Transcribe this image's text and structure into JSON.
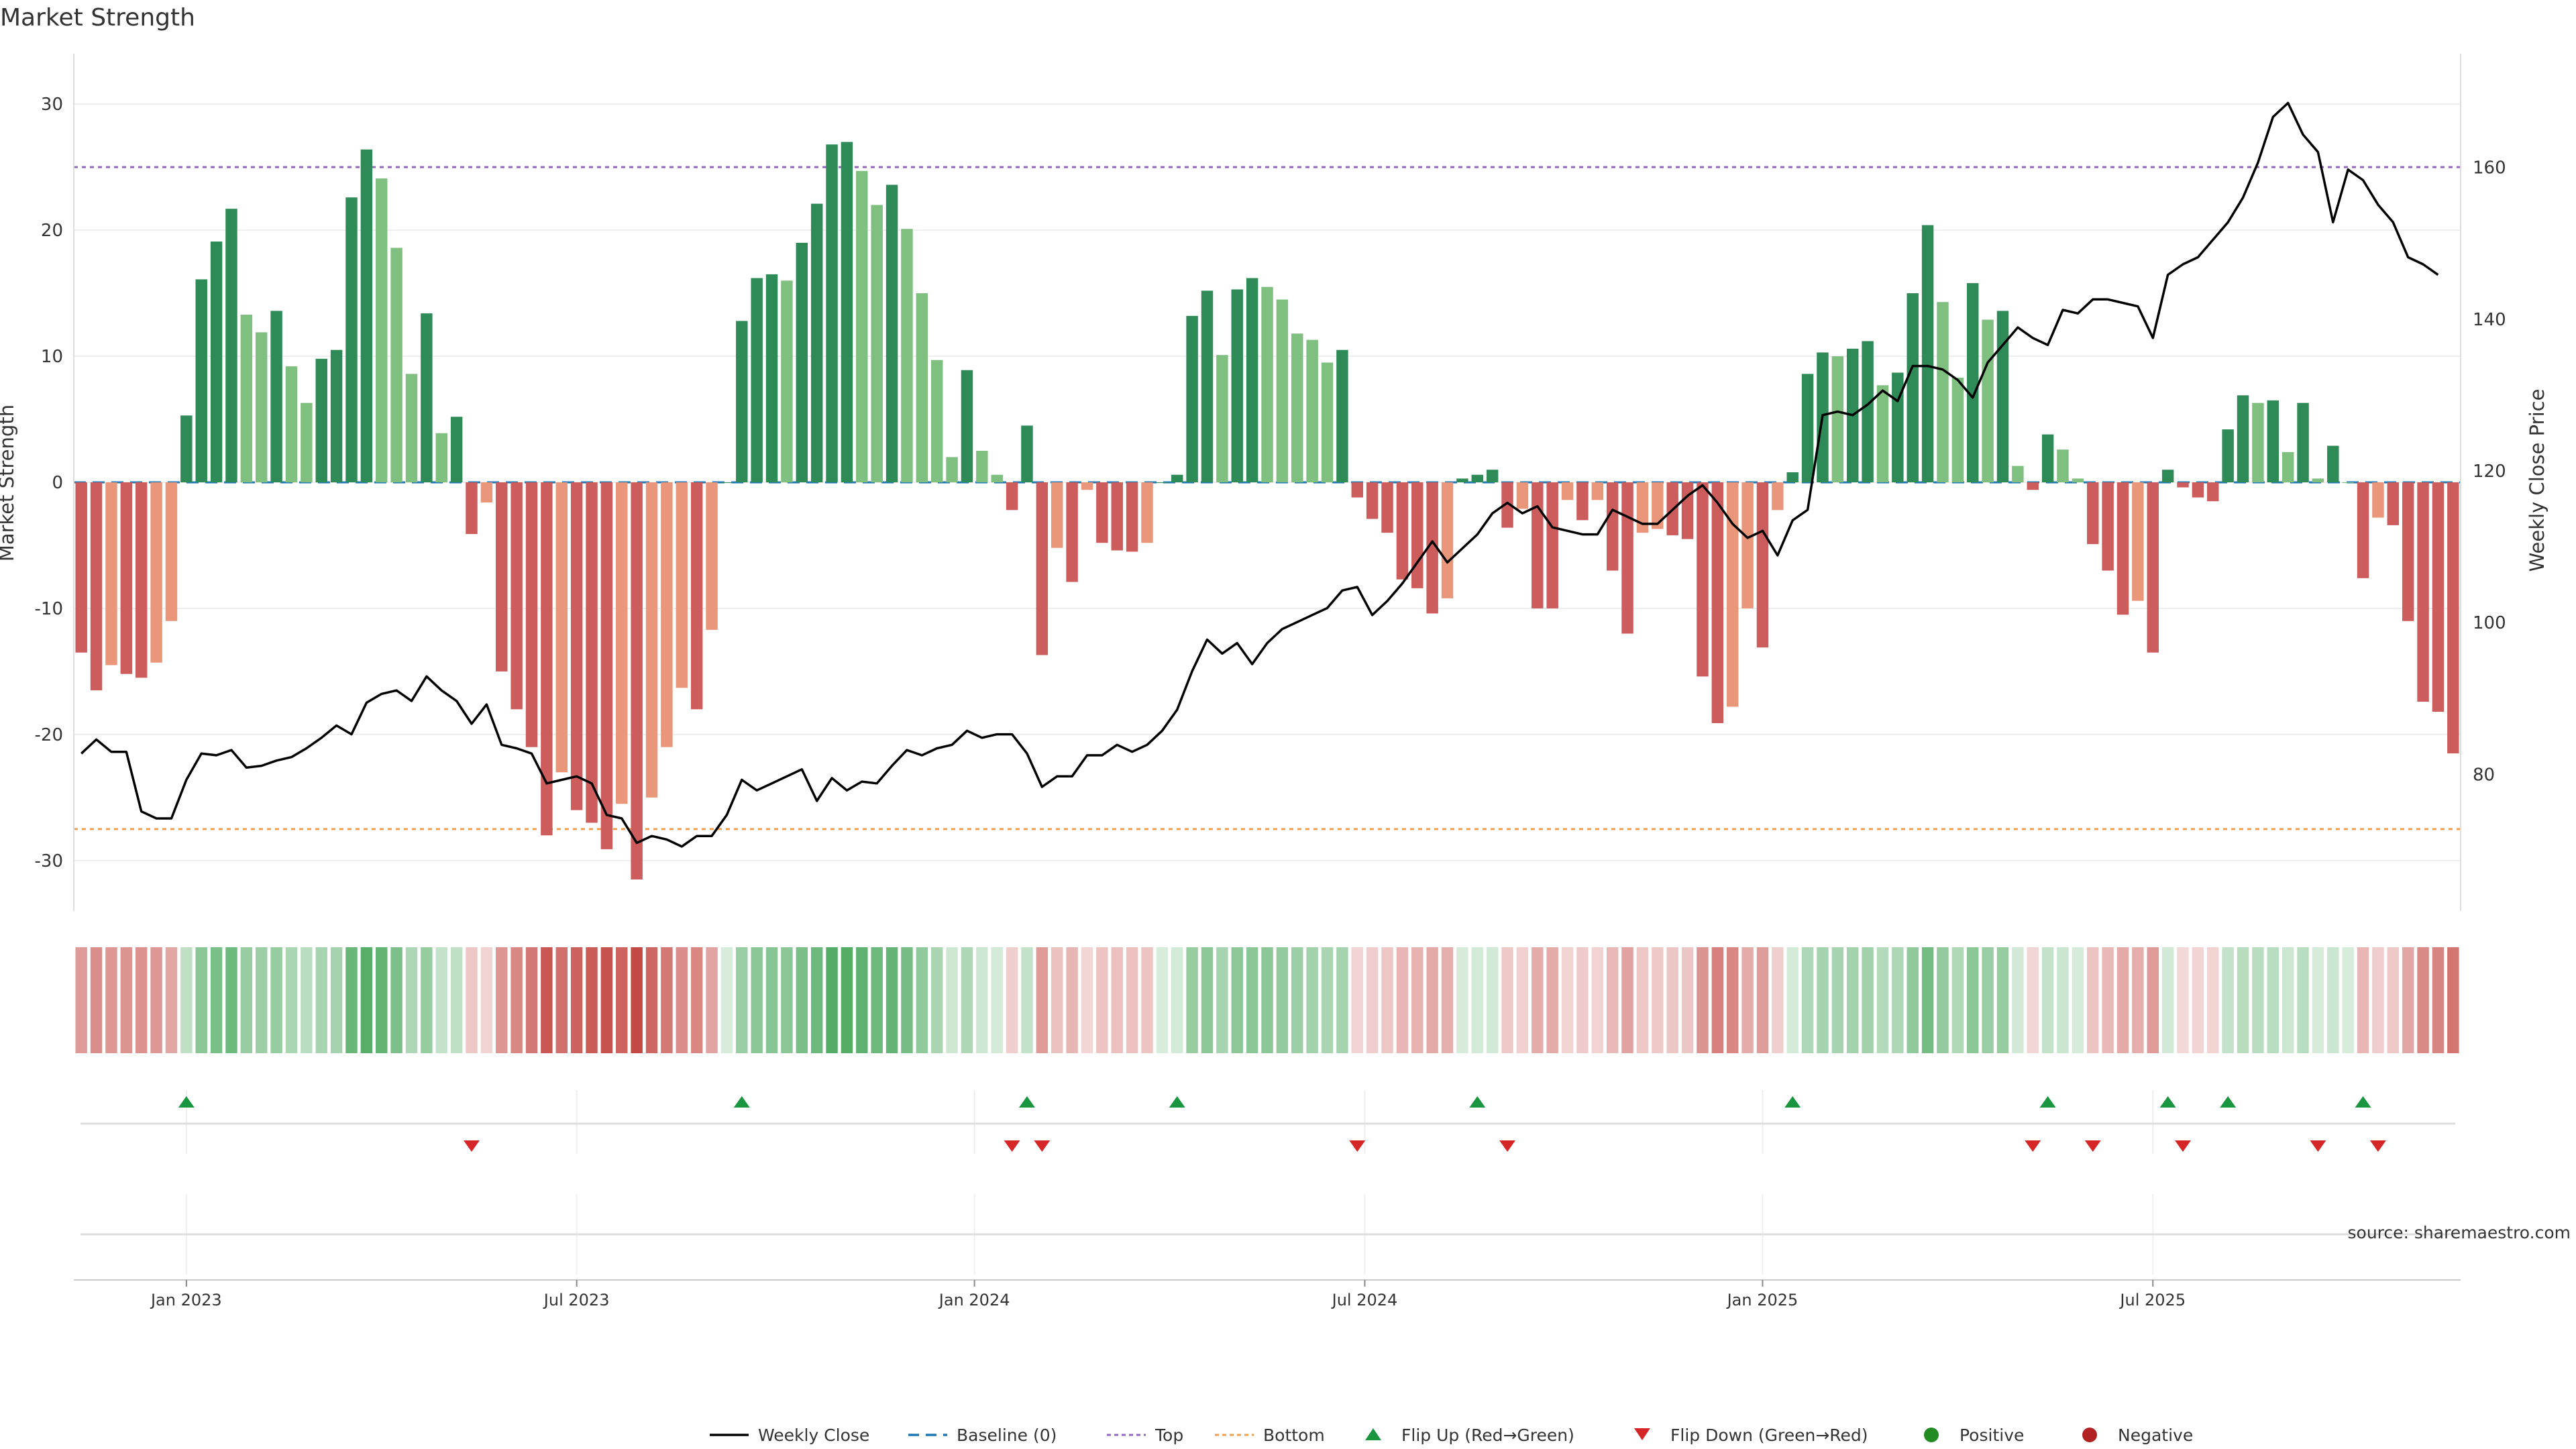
{
  "chart_data": {
    "type": "bar",
    "title": "Market Strength",
    "ylabel": "Market Strength",
    "ylabel_right": "Weekly Close Price",
    "ylim": [
      -34,
      34
    ],
    "ylim_right": [
      62,
      175
    ],
    "yticks": [
      -30,
      -20,
      -10,
      0,
      10,
      20,
      30
    ],
    "yticks_right": [
      80,
      100,
      120,
      140,
      160
    ],
    "top_level": 25,
    "bottom_level": -27.5,
    "x_tick_labels": [
      {
        "label": "Jan 2023",
        "week": 7
      },
      {
        "label": "Jul 2023",
        "week": 33
      },
      {
        "label": "Jan 2024",
        "week": 59.5
      },
      {
        "label": "Jul 2024",
        "week": 85.5
      },
      {
        "label": "Jan 2025",
        "week": 112
      },
      {
        "label": "Jul 2025",
        "week": 138
      }
    ],
    "strength": [
      -13.5,
      -16.5,
      -14.5,
      -15.2,
      -15.5,
      -14.3,
      -11,
      5.3,
      16.1,
      19.1,
      21.7,
      13.3,
      11.9,
      13.6,
      9.2,
      6.3,
      9.8,
      10.5,
      22.6,
      26.4,
      24.1,
      18.6,
      8.6,
      13.4,
      3.9,
      5.2,
      -4.1,
      -1.6,
      -15,
      -18,
      -21,
      -28,
      -23,
      -26,
      -27,
      -29.1,
      -25.5,
      -31.5,
      -25,
      -21,
      -16.3,
      -18,
      -11.7,
      0,
      12.8,
      16.2,
      16.5,
      16,
      19,
      22.1,
      26.8,
      27,
      24.7,
      22,
      23.6,
      20.1,
      15,
      9.7,
      2,
      8.9,
      2.5,
      0.6,
      -2.2,
      4.5,
      -13.7,
      -5.2,
      -7.9,
      -0.6,
      -4.8,
      -5.4,
      -5.5,
      -4.8,
      0,
      0.6,
      13.2,
      15.2,
      10.1,
      15.3,
      16.2,
      15.5,
      14.5,
      11.8,
      11.3,
      9.5,
      10.5,
      -1.2,
      -2.9,
      -4,
      -7.7,
      -8.4,
      -10.4,
      -9.2,
      0.3,
      0.6,
      1,
      -3.6,
      -2.1,
      -10,
      -10,
      -1.4,
      -3,
      -1.4,
      -7,
      -12,
      -4,
      -3.7,
      -4.2,
      -4.5,
      -15.4,
      -19.1,
      -17.8,
      -10,
      -13.1,
      -2.2,
      0.8,
      8.6,
      10.3,
      10,
      10.6,
      11.2,
      7.7,
      8.7,
      15,
      20.4,
      14.3,
      8.3,
      15.8,
      12.9,
      13.6,
      1.3,
      -0.6,
      3.8,
      2.6,
      0.3,
      -4.9,
      -7,
      -10.5,
      -9.4,
      -13.5,
      1,
      -0.4,
      -1.2,
      -1.5,
      4.2,
      6.9,
      6.3,
      6.5,
      2.4,
      6.3,
      0.3,
      2.9,
      0,
      -7.6,
      -2.8,
      -3.4,
      -11,
      -17.4,
      -18.2,
      -21.5
    ],
    "weekly_close": [
      63.5,
      67.5,
      64,
      64,
      47,
      45,
      45,
      56,
      63.5,
      63,
      64.5,
      59.5,
      60,
      61.5,
      62.5,
      65,
      68,
      71.5,
      69,
      78,
      80.5,
      81.5,
      78.5,
      85.5,
      81.5,
      78.5,
      72,
      77.5,
      66,
      65,
      63.5,
      55,
      56,
      57,
      55,
      46,
      45,
      38,
      40,
      39,
      37,
      40,
      40,
      46,
      56,
      53,
      55,
      57,
      59,
      50,
      56.5,
      53,
      55.5,
      55,
      60,
      64.5,
      63,
      65,
      66,
      70,
      68,
      69,
      69,
      63.5,
      54,
      57,
      57,
      63,
      63,
      66,
      64,
      66,
      70,
      76,
      87,
      96,
      92,
      95,
      89,
      95,
      99,
      101,
      103,
      105,
      110,
      111,
      103,
      107,
      112,
      118,
      124,
      118,
      122,
      126,
      132,
      135,
      132,
      134,
      128,
      127,
      126,
      126,
      133,
      131,
      129,
      129,
      133,
      137,
      140,
      135,
      129,
      125,
      127,
      120,
      130,
      133,
      160,
      161,
      160,
      163,
      167,
      164,
      174,
      174,
      173,
      170,
      165,
      175,
      180,
      185,
      182,
      180,
      190,
      189,
      193,
      193,
      192,
      191,
      182,
      200,
      203,
      205,
      210,
      215,
      222,
      232,
      245,
      249,
      240,
      235,
      215,
      230,
      227,
      220,
      215,
      205,
      203,
      200
    ],
    "weekly_close_scale": {
      "min": 37,
      "max": 249,
      "price_min": 70.5,
      "price_max": 168.5
    },
    "flip_up": [
      7,
      44,
      63,
      73,
      93,
      114,
      131,
      139,
      143,
      152
    ],
    "flip_down": [
      26,
      62,
      64,
      85,
      95,
      130,
      134,
      140,
      149,
      153
    ],
    "legend": [
      "Weekly Close",
      "Baseline (0)",
      "Top",
      "Bottom",
      "Flip Up (Red→Green)",
      "Flip Down (Green→Red)",
      "Positive",
      "Negative"
    ],
    "grid": true
  },
  "source": "source: sharemaestro.com",
  "colors": {
    "green_dark": "#2e8b57",
    "green_light": "#7fbf7f",
    "red_dark": "#cd5c5c",
    "red_light": "#e9967a",
    "top_line": "#9467bd",
    "bottom_line": "#f0a050",
    "baseline": "#1f77b4",
    "close_line": "#000000",
    "flip_up": "#1a9641",
    "flip_down": "#d62728",
    "positive": "#228b22",
    "negative": "#b22222"
  }
}
